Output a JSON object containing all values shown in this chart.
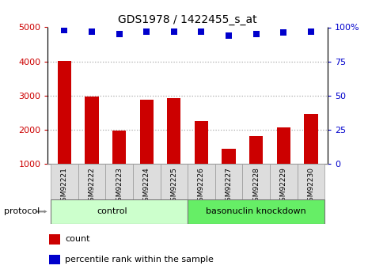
{
  "title": "GDS1978 / 1422455_s_at",
  "samples": [
    "GSM92221",
    "GSM92222",
    "GSM92223",
    "GSM92224",
    "GSM92225",
    "GSM92226",
    "GSM92227",
    "GSM92228",
    "GSM92229",
    "GSM92230"
  ],
  "counts": [
    4020,
    2960,
    1980,
    2880,
    2920,
    2260,
    1430,
    1820,
    2060,
    2470
  ],
  "percentile_ranks": [
    98,
    97,
    95,
    97,
    97,
    97,
    94,
    95,
    96,
    97
  ],
  "bar_color": "#cc0000",
  "dot_color": "#0000cc",
  "ylim_left": [
    1000,
    5000
  ],
  "ylim_right": [
    0,
    100
  ],
  "yticks_left": [
    1000,
    2000,
    3000,
    4000,
    5000
  ],
  "yticks_right": [
    0,
    25,
    50,
    75,
    100
  ],
  "yticklabels_right": [
    "0",
    "25",
    "50",
    "75",
    "100%"
  ],
  "n_control": 5,
  "control_label": "control",
  "knockdown_label": "basonuclin knockdown",
  "protocol_label": "protocol",
  "control_color": "#ccffcc",
  "knockdown_color": "#66ee66",
  "legend_count_label": "count",
  "legend_pct_label": "percentile rank within the sample",
  "grid_color": "#aaaaaa",
  "tick_bg_color": "#dddddd"
}
